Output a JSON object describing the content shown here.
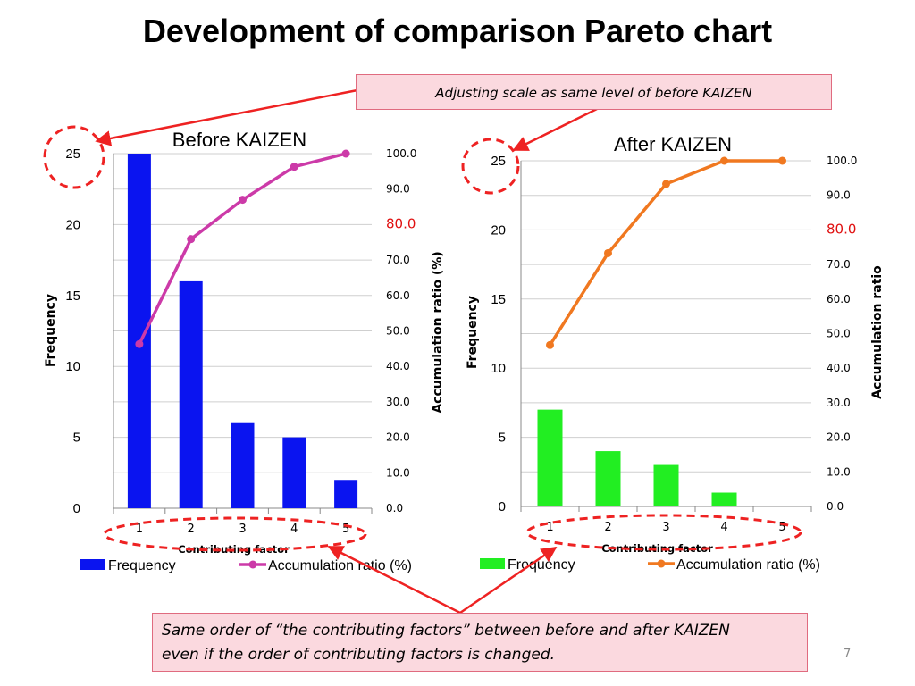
{
  "slide": {
    "title": "Development of comparison Pareto chart",
    "top_callout": "Adjusting scale as same level of before KAIZEN",
    "bottom_callout_line1": "Same order of “the contributing factors” between before and after KAIZEN",
    "bottom_callout_line2": "even if the order of contributing factors is changed.",
    "page_number": "7"
  },
  "colors": {
    "before_bar": "#0a14f0",
    "before_line": "#cc3aa8",
    "after_bar": "#22ee22",
    "after_line": "#f07820",
    "highlight_red": "#ee2222",
    "callout_fill": "#fbd9df"
  },
  "chart_data": [
    {
      "type": "bar",
      "title": "Before KAIZEN",
      "categories": [
        "1",
        "2",
        "3",
        "4",
        "5"
      ],
      "series": [
        {
          "name": "Frequency",
          "type": "bar",
          "values": [
            25,
            16,
            6,
            5,
            2
          ]
        },
        {
          "name": "Accumulation ratio (%)",
          "type": "line",
          "values": [
            46.3,
            75.9,
            87.0,
            96.3,
            100.0
          ]
        }
      ],
      "xlabel": "Contributing factor",
      "ylabel": "Frequency",
      "y2label": "Accumulation ratio (%)",
      "ylim": [
        0,
        25
      ],
      "y2lim": [
        0,
        100
      ],
      "yticks": [
        "0",
        "5",
        "10",
        "15",
        "20",
        "25"
      ],
      "y2ticks": [
        "0.0",
        "10.0",
        "20.0",
        "30.0",
        "40.0",
        "50.0",
        "60.0",
        "70.0",
        "80.0",
        "90.0",
        "100.0"
      ],
      "legend": "bottom"
    },
    {
      "type": "bar",
      "title": "After KAIZEN",
      "categories": [
        "1",
        "2",
        "3",
        "4",
        "5"
      ],
      "series": [
        {
          "name": "Frequency",
          "type": "bar",
          "values": [
            7,
            4,
            3,
            1,
            0
          ]
        },
        {
          "name": "Accumulation ratio (%)",
          "type": "line",
          "values": [
            46.7,
            73.3,
            93.3,
            100.0,
            100.0
          ]
        }
      ],
      "xlabel": "Contributing factor",
      "ylabel": "Frequency",
      "y2label": "Accumulation ratio",
      "ylim": [
        0,
        25
      ],
      "y2lim": [
        0,
        100
      ],
      "yticks": [
        "0",
        "5",
        "10",
        "15",
        "20",
        "25"
      ],
      "y2ticks": [
        "0.0",
        "10.0",
        "20.0",
        "30.0",
        "40.0",
        "50.0",
        "60.0",
        "70.0",
        "80.0",
        "90.0",
        "100.0"
      ],
      "legend": "bottom"
    }
  ]
}
